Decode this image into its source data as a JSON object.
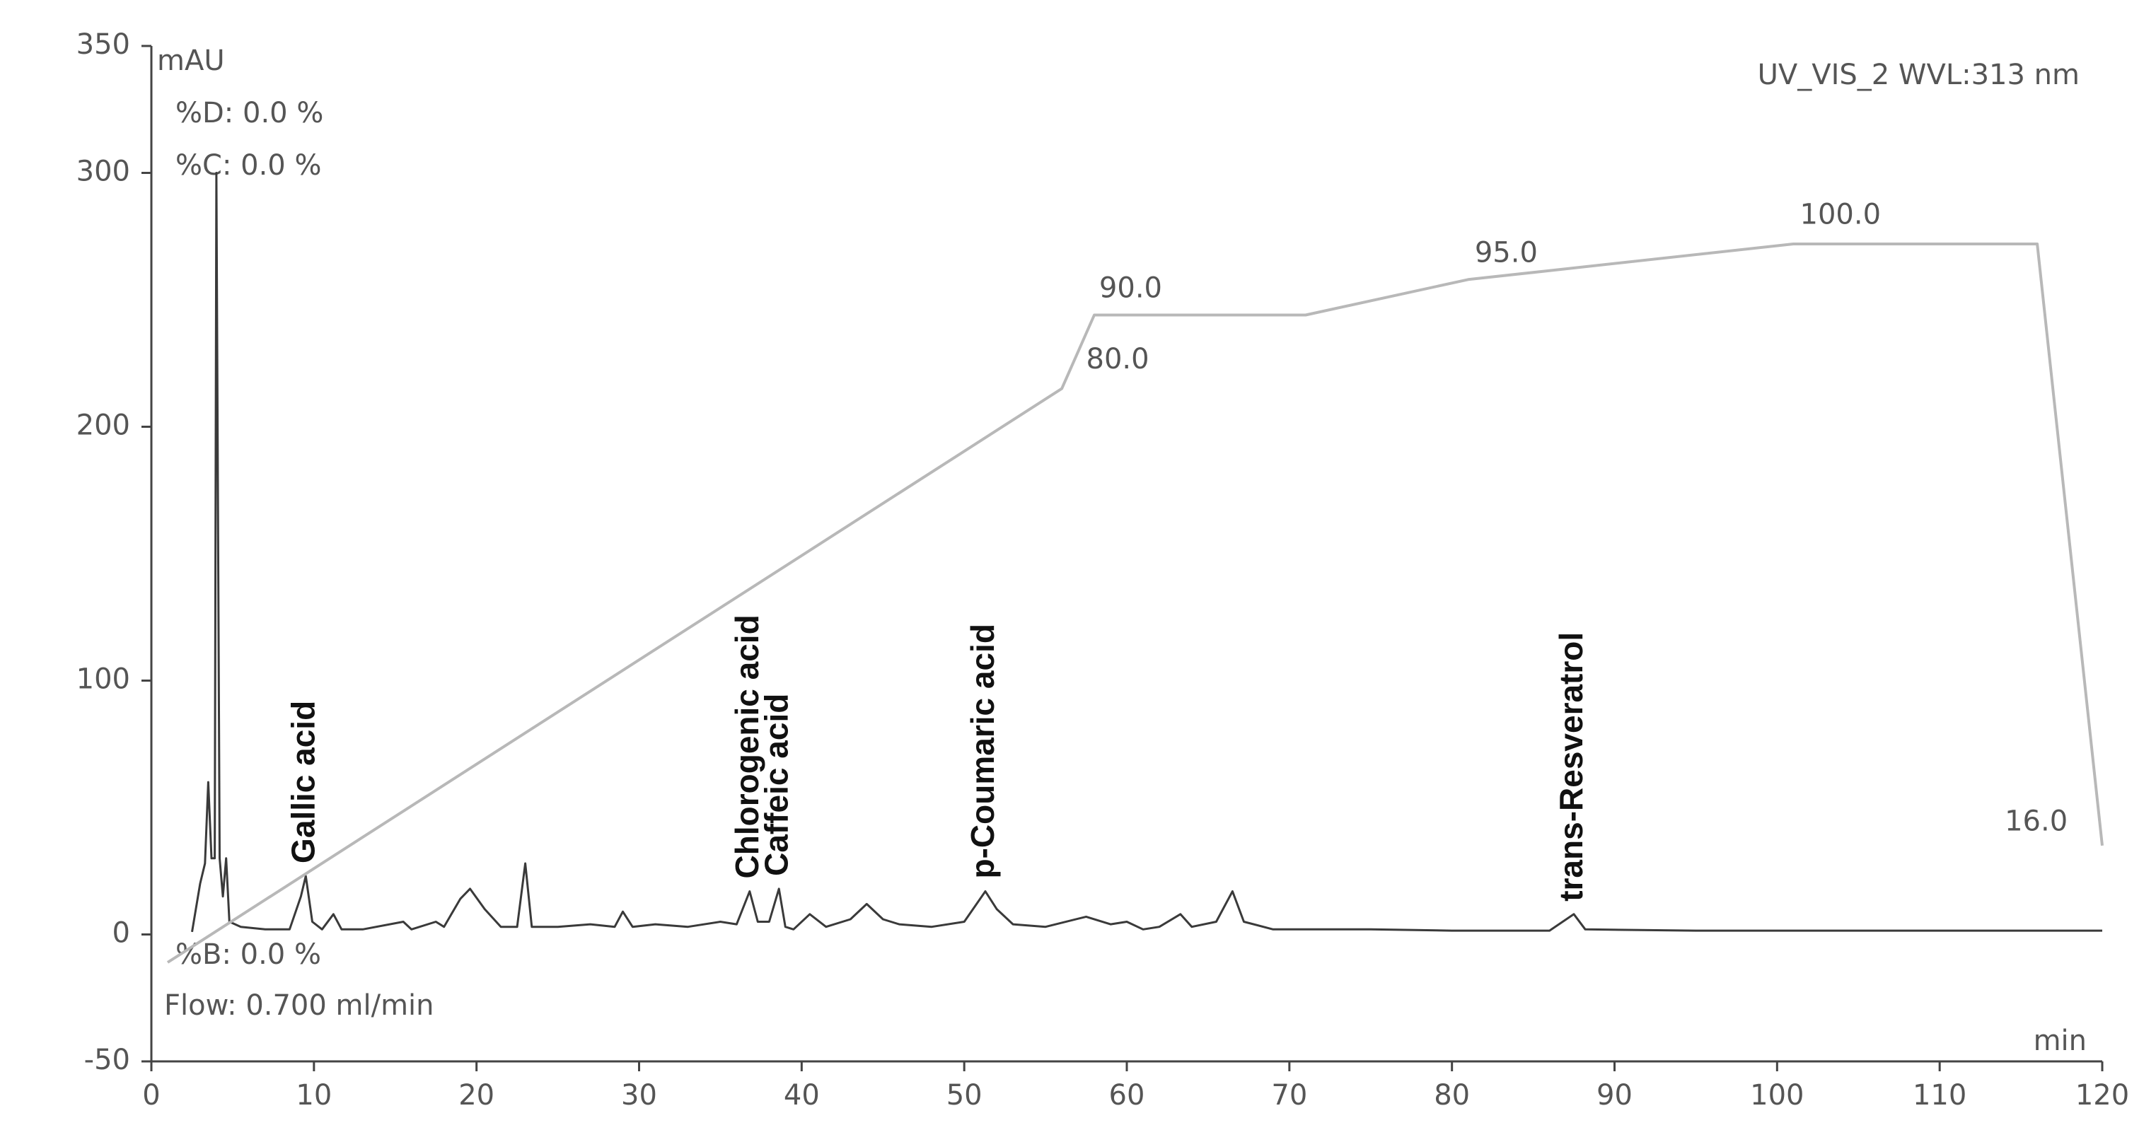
{
  "chart_data": {
    "type": "line",
    "y_label": "mAU",
    "x_label": "min",
    "channel": "UV_VIS_2 WVL:313 nm",
    "info_labels": [
      "%D: 0.0 %",
      "%C: 0.0 %"
    ],
    "bottom_labels": [
      "%B: 0.0 %",
      "Flow: 0.700 ml/min"
    ],
    "xlim": [
      0,
      120
    ],
    "xticks": [
      0,
      10,
      20,
      30,
      40,
      50,
      60,
      70,
      80,
      90,
      100,
      110,
      120
    ],
    "ylim": [
      -50,
      350
    ],
    "yticks": [
      -50,
      0,
      100,
      200,
      300,
      350
    ],
    "series": [
      {
        "color": "#3a3a3a",
        "x": [
          2.5,
          3,
          3.3,
          3.5,
          3.7,
          3.9,
          4.0,
          4.2,
          4.4,
          4.6,
          4.8,
          5.5,
          7,
          8.5,
          9.2,
          9.5,
          9.9,
          10.5,
          11.2,
          11.7,
          13,
          15.5,
          16,
          17.5,
          18,
          19,
          19.6,
          20.5,
          21.5,
          22.5,
          23,
          23.4,
          25,
          27,
          28.5,
          29,
          29.6,
          31,
          33,
          35,
          36,
          36.8,
          37.3,
          38,
          38.6,
          39,
          39.5,
          40.5,
          41.5,
          43,
          44,
          45,
          46,
          48,
          50,
          51.3,
          52,
          53,
          55,
          57.5,
          59,
          60,
          61,
          62,
          63.3,
          64,
          65.5,
          66.5,
          67.2,
          69,
          72,
          75,
          80,
          86,
          87.5,
          88.2,
          95,
          110,
          120
        ],
        "values": [
          1,
          20,
          28,
          60,
          30,
          30,
          300,
          30,
          15,
          30,
          5,
          3,
          2,
          2,
          15,
          23,
          5,
          2,
          8,
          2,
          2,
          5,
          2,
          5,
          3,
          14,
          18,
          10,
          3,
          3,
          28,
          3,
          3,
          4,
          3,
          9,
          3,
          4,
          3,
          5,
          4,
          17,
          5,
          5,
          18,
          3,
          2,
          8,
          3,
          6,
          12,
          6,
          4,
          3,
          5,
          17,
          10,
          4,
          3,
          7,
          4,
          5,
          2,
          3,
          8,
          3,
          5,
          17,
          5,
          2,
          2,
          2,
          1.5,
          1.5,
          8,
          2,
          1.5,
          1.5,
          1.5
        ]
      },
      {
        "color": "#b8b8b8",
        "x": [
          1,
          56,
          58,
          71,
          81,
          101,
          116,
          120
        ],
        "values": [
          -11,
          215,
          244,
          244,
          258,
          272,
          272,
          35
        ]
      }
    ],
    "gradient_labels": [
      {
        "text": "80.0",
        "x": 57.5,
        "y": 226
      },
      {
        "text": "90.0",
        "x": 58.3,
        "y": 254
      },
      {
        "text": "95.0",
        "x": 81.4,
        "y": 268
      },
      {
        "text": "100.0",
        "x": 101.4,
        "y": 283
      },
      {
        "text": "16.0",
        "x": 114,
        "y": 44
      }
    ],
    "peaks": [
      {
        "text": "Gallic acid",
        "x": 9.5,
        "y": 23
      },
      {
        "text": "Chlorogenic acid",
        "x": 36.8,
        "y": 17
      },
      {
        "text": "Caffeic acid",
        "x": 38.6,
        "y": 18
      },
      {
        "text": "p-Coumaric acid",
        "x": 51.3,
        "y": 17
      },
      {
        "text": "trans-Resveratrol",
        "x": 87.5,
        "y": 8
      }
    ]
  }
}
